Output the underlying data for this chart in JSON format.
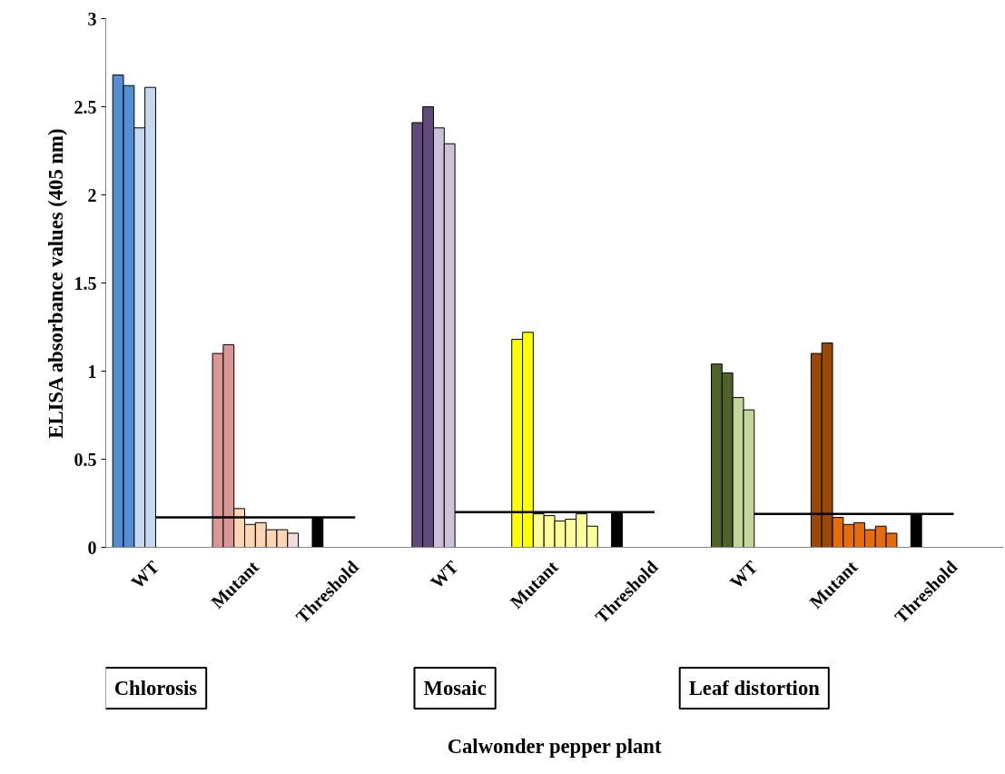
{
  "chart_data": {
    "type": "bar",
    "ylabel": "ELISA absorbance values (405 nm)",
    "categories": [
      "WT",
      "Mutant",
      "Threshold",
      "WT",
      "Mutant",
      "Threshold",
      "WT",
      "Mutant",
      "Threshold"
    ],
    "ylim": [
      0,
      3
    ],
    "yticks": [
      0,
      0.5,
      1,
      1.5,
      2,
      2.5,
      3
    ],
    "annotations": [
      "Chlorosis",
      "Mosaic",
      "Leaf distortion",
      "Calwonder pepper plant"
    ],
    "series": [
      {
        "values": [
          2.68,
          1.1,
          0.17,
          2.41,
          1.18,
          0.2,
          1.04,
          1.1,
          0.19
        ],
        "colors": [
          "#558ed5",
          "#d99694",
          "#000000",
          "#604a7b",
          "#ffff00",
          "#000000",
          "#4f6228",
          "#984807",
          "#000000"
        ]
      },
      {
        "values": [
          2.62,
          1.15,
          null,
          2.5,
          1.22,
          null,
          0.99,
          1.16,
          null
        ],
        "colors": [
          "#558ed5",
          "#d99694",
          null,
          "#604a7b",
          "#ffff00",
          null,
          "#4f6228",
          "#984807",
          null
        ]
      },
      {
        "values": [
          2.38,
          0.22,
          null,
          2.38,
          0.19,
          null,
          0.85,
          0.17,
          null
        ],
        "colors": [
          "#c6d9f1",
          "#fcd5b5",
          null,
          "#ccc1da",
          "#ffff99",
          null,
          "#c3d69b",
          "#e46c0a",
          null
        ]
      },
      {
        "values": [
          2.61,
          0.13,
          null,
          2.29,
          0.18,
          null,
          0.78,
          0.13,
          null
        ],
        "colors": [
          "#c6d9f1",
          "#fcd5b5",
          null,
          "#ccc1da",
          "#ffff99",
          null,
          "#c3d69b",
          "#e46c0a",
          null
        ]
      },
      {
        "values": [
          null,
          0.14,
          null,
          null,
          0.15,
          null,
          null,
          0.14,
          null
        ],
        "colors": [
          null,
          "#fcd5b5",
          null,
          null,
          "#ffff99",
          null,
          null,
          "#e46c0a",
          null
        ]
      },
      {
        "values": [
          null,
          0.1,
          null,
          null,
          0.16,
          null,
          null,
          0.1,
          null
        ],
        "colors": [
          null,
          "#fcd5b5",
          null,
          null,
          "#ffff99",
          null,
          null,
          "#e46c0a",
          null
        ]
      },
      {
        "values": [
          null,
          0.1,
          null,
          null,
          0.19,
          null,
          null,
          0.12,
          null
        ],
        "colors": [
          null,
          "#fcd5b5",
          null,
          null,
          "#ffff99",
          null,
          null,
          "#e46c0a",
          null
        ]
      },
      {
        "values": [
          null,
          0.08,
          null,
          null,
          0.12,
          null,
          null,
          0.08,
          null
        ],
        "colors": [
          null,
          "#f2dcdb",
          null,
          null,
          "#ffff99",
          null,
          null,
          "#e46c0a",
          null
        ]
      },
      {
        "type": "line",
        "color": "#000000",
        "values": [
          0.17,
          0.17,
          0.17,
          null,
          null,
          null,
          null,
          null,
          null
        ]
      },
      {
        "type": "line",
        "color": "#000000",
        "values": [
          null,
          null,
          null,
          0.2,
          0.2,
          0.2,
          null,
          null,
          null
        ]
      },
      {
        "type": "line",
        "color": "#000000",
        "values": [
          null,
          null,
          null,
          null,
          null,
          null,
          0.19,
          0.19,
          0.19
        ]
      }
    ]
  }
}
